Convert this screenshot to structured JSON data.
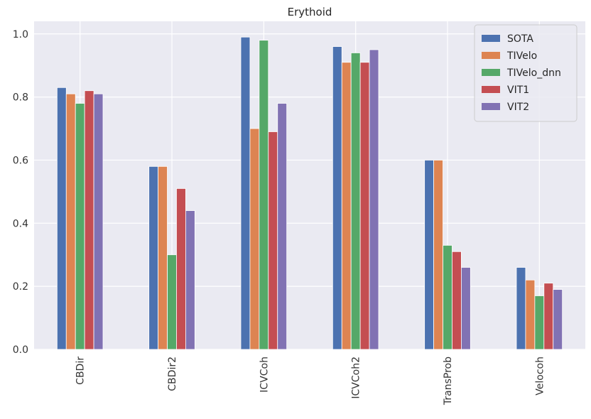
{
  "chart_data": {
    "type": "bar",
    "title": "Erythoid",
    "xlabel": "",
    "ylabel": "",
    "ylim": [
      0,
      1.04
    ],
    "yticks": [
      "0.0",
      "0.2",
      "0.4",
      "0.6",
      "0.8",
      "1.0"
    ],
    "ytick_values": [
      0,
      0.2,
      0.4,
      0.6,
      0.8,
      1.0
    ],
    "categories": [
      "CBDir",
      "CBDir2",
      "ICVCoh",
      "ICVCoh2",
      "TransProb",
      "Velocoh"
    ],
    "series": [
      {
        "name": "SOTA",
        "color": "#4c72b0",
        "values": [
          0.83,
          0.58,
          0.99,
          0.96,
          0.6,
          0.26
        ]
      },
      {
        "name": "TIVelo",
        "color": "#dd8452",
        "values": [
          0.81,
          0.58,
          0.7,
          0.91,
          0.6,
          0.22
        ]
      },
      {
        "name": "TIVelo_dnn",
        "color": "#55a868",
        "values": [
          0.78,
          0.3,
          0.98,
          0.94,
          0.33,
          0.17
        ]
      },
      {
        "name": "VIT1",
        "color": "#c44e52",
        "values": [
          0.82,
          0.51,
          0.69,
          0.91,
          0.31,
          0.21
        ]
      },
      {
        "name": "VIT2",
        "color": "#8172b3",
        "values": [
          0.81,
          0.44,
          0.78,
          0.95,
          0.26,
          0.19
        ]
      }
    ],
    "grid": true,
    "legend_position": "top-right",
    "background": "#eaeaf2"
  }
}
